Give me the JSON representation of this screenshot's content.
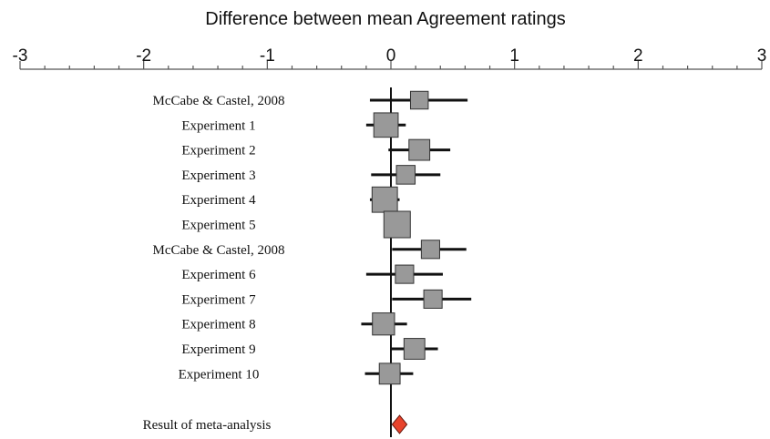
{
  "chart_data": {
    "type": "forest",
    "title": "Difference between mean Agreement ratings",
    "xlim": [
      -3,
      3
    ],
    "x_ticks": [
      {
        "value": -3,
        "label": "-3"
      },
      {
        "value": -2,
        "label": "-2"
      },
      {
        "value": -1,
        "label": "-1"
      },
      {
        "value": 0,
        "label": "0"
      },
      {
        "value": 1,
        "label": "1"
      },
      {
        "value": 2,
        "label": "2"
      },
      {
        "value": 3,
        "label": "3"
      }
    ],
    "x_minor_tick_step": 0.2,
    "reference_line": 0,
    "square_color": "#999999",
    "summary_color": "#e8432c",
    "studies": [
      {
        "label": "McCabe & Castel, 2008",
        "estimate": 0.23,
        "ci_low": -0.17,
        "ci_high": 0.62,
        "weight": 0.45
      },
      {
        "label": "Experiment 1",
        "estimate": -0.04,
        "ci_low": -0.2,
        "ci_high": 0.12,
        "weight": 0.85
      },
      {
        "label": "Experiment 2",
        "estimate": 0.23,
        "ci_low": -0.02,
        "ci_high": 0.48,
        "weight": 0.62
      },
      {
        "label": "Experiment 3",
        "estimate": 0.12,
        "ci_low": -0.16,
        "ci_high": 0.4,
        "weight": 0.5
      },
      {
        "label": "Experiment 4",
        "estimate": -0.05,
        "ci_low": -0.17,
        "ci_high": 0.07,
        "weight": 0.92
      },
      {
        "label": "Experiment 5",
        "estimate": 0.05,
        "ci_low": -0.05,
        "ci_high": 0.15,
        "weight": 1.0
      },
      {
        "label": "McCabe & Castel, 2008",
        "estimate": 0.32,
        "ci_low": 0.01,
        "ci_high": 0.61,
        "weight": 0.48
      },
      {
        "label": "Experiment 6",
        "estimate": 0.11,
        "ci_low": -0.2,
        "ci_high": 0.42,
        "weight": 0.48
      },
      {
        "label": "Experiment 7",
        "estimate": 0.34,
        "ci_low": 0.01,
        "ci_high": 0.65,
        "weight": 0.48
      },
      {
        "label": "Experiment 8",
        "estimate": -0.06,
        "ci_low": -0.24,
        "ci_high": 0.13,
        "weight": 0.7
      },
      {
        "label": "Experiment 9",
        "estimate": 0.19,
        "ci_low": 0.0,
        "ci_high": 0.38,
        "weight": 0.62
      },
      {
        "label": "Experiment 10",
        "estimate": -0.01,
        "ci_low": -0.21,
        "ci_high": 0.18,
        "weight": 0.62
      }
    ],
    "summary": {
      "label": "Result of meta-analysis",
      "estimate": 0.07,
      "ci_low": 0.01,
      "ci_high": 0.13
    }
  }
}
